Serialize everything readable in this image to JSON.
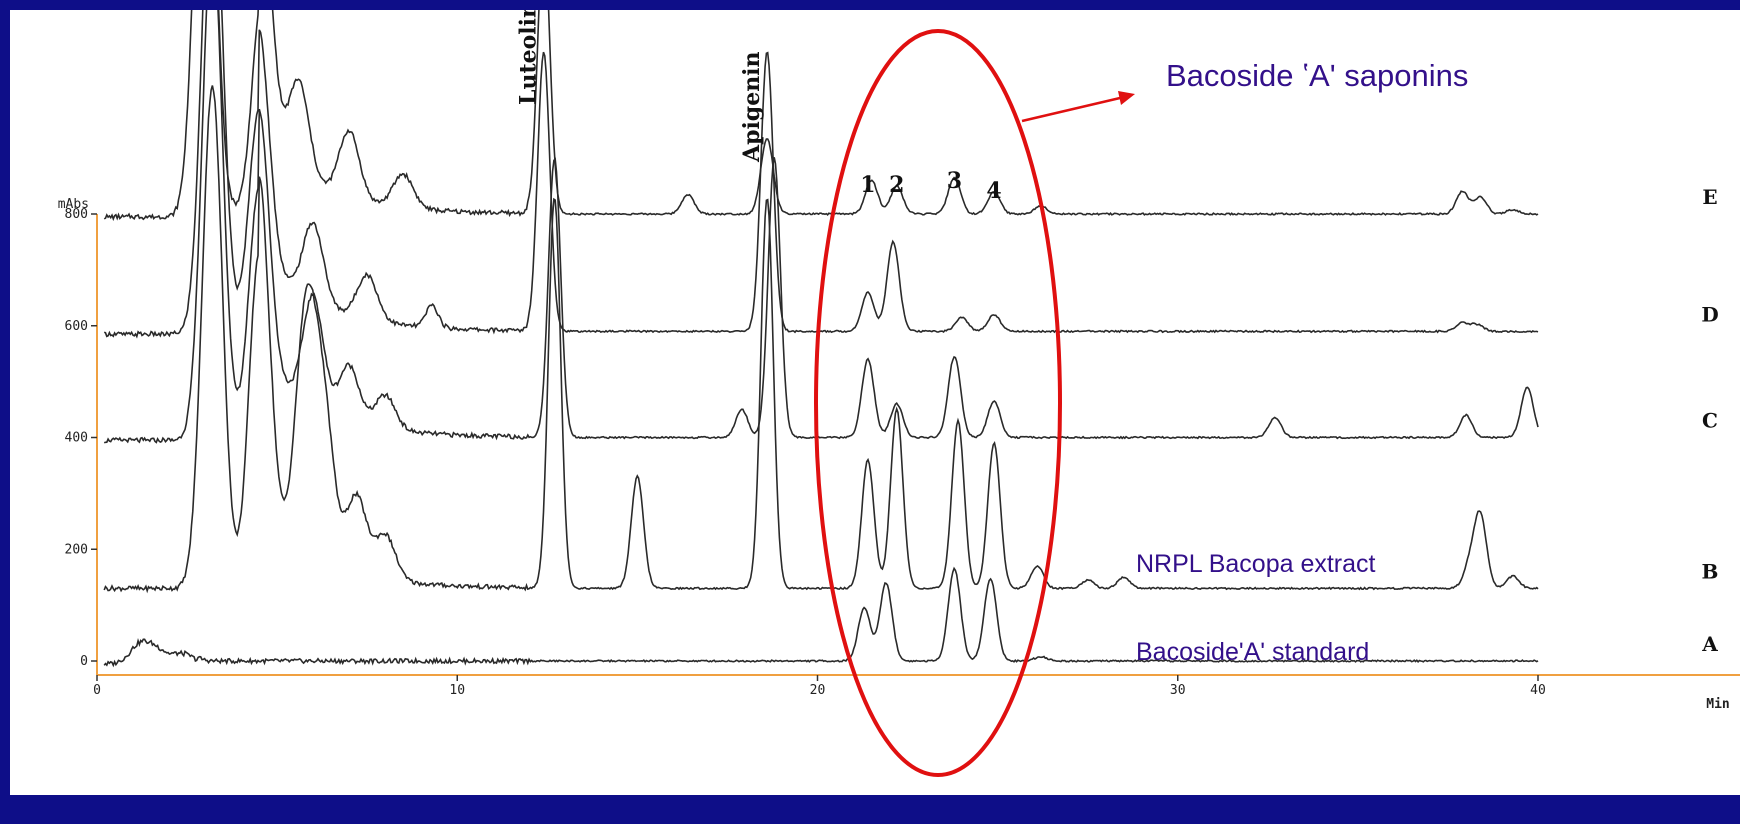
{
  "chart_data": {
    "type": "line",
    "title": "",
    "xlabel": "Min",
    "ylabel": "mAbs",
    "xlim": [
      0,
      40
    ],
    "ylim": [
      0,
      800
    ],
    "x_ticks": [
      0,
      10,
      20,
      30,
      40
    ],
    "y_ticks": [
      0,
      200,
      400,
      600,
      800
    ],
    "y_tick_labels": [
      "0",
      "200",
      "400",
      "600",
      "800"
    ],
    "x_tick_labels": [
      "0",
      "10",
      "20",
      "30",
      "40"
    ],
    "series": [
      {
        "name": "A",
        "baseline": 0,
        "peaks": [
          [
            1.2,
            35
          ],
          [
            1.7,
            22
          ],
          [
            2.4,
            18
          ],
          [
            21.3,
            95
          ],
          [
            21.9,
            140
          ],
          [
            23.8,
            165
          ],
          [
            24.8,
            148
          ],
          [
            26.2,
            8
          ]
        ]
      },
      {
        "name": "B",
        "baseline": 130,
        "peaks": [
          [
            3.2,
            900
          ],
          [
            4.5,
            600
          ],
          [
            5.8,
            420
          ],
          [
            6.3,
            260
          ],
          [
            7.2,
            140
          ],
          [
            8.0,
            80
          ],
          [
            12.7,
            700
          ],
          [
            15.0,
            200
          ],
          [
            18.6,
            700
          ],
          [
            21.4,
            230
          ],
          [
            22.2,
            320
          ],
          [
            23.9,
            300
          ],
          [
            24.9,
            260
          ],
          [
            26.1,
            40
          ],
          [
            27.5,
            15
          ],
          [
            28.5,
            20
          ],
          [
            38.1,
            40
          ],
          [
            38.4,
            130
          ],
          [
            39.3,
            22
          ]
        ]
      },
      {
        "name": "C",
        "baseline": 400,
        "peaks": [
          [
            3.2,
            900
          ],
          [
            4.5,
            450
          ],
          [
            6.0,
            200
          ],
          [
            7.0,
            100
          ],
          [
            8.0,
            60
          ],
          [
            12.7,
            500
          ],
          [
            17.9,
            50
          ],
          [
            18.8,
            500
          ],
          [
            21.4,
            140
          ],
          [
            22.2,
            60
          ],
          [
            23.8,
            145
          ],
          [
            24.9,
            65
          ],
          [
            32.7,
            35
          ],
          [
            38.0,
            40
          ],
          [
            39.7,
            90
          ]
        ]
      },
      {
        "name": "D",
        "baseline": 590,
        "peaks": [
          [
            3.2,
            900
          ],
          [
            4.5,
            400
          ],
          [
            6.0,
            140
          ],
          [
            7.5,
            80
          ],
          [
            9.3,
            40
          ],
          [
            12.4,
            500
          ],
          [
            18.6,
            500
          ],
          [
            21.4,
            70
          ],
          [
            22.1,
            160
          ],
          [
            24.0,
            25
          ],
          [
            24.9,
            30
          ],
          [
            37.9,
            15
          ],
          [
            38.3,
            12
          ]
        ]
      },
      {
        "name": "E",
        "baseline": 800,
        "peaks": [
          [
            3.0,
            900
          ],
          [
            4.6,
            400
          ],
          [
            5.6,
            170
          ],
          [
            7.0,
            120
          ],
          [
            8.5,
            60
          ],
          [
            12.4,
            500
          ],
          [
            16.4,
            35
          ],
          [
            18.6,
            135
          ],
          [
            21.5,
            60
          ],
          [
            22.2,
            50
          ],
          [
            23.8,
            65
          ],
          [
            24.9,
            40
          ],
          [
            26.2,
            15
          ],
          [
            37.9,
            40
          ],
          [
            38.4,
            30
          ],
          [
            39.3,
            8
          ]
        ]
      }
    ],
    "compound_labels": [
      {
        "text": "Luteolin",
        "x": 12.4
      },
      {
        "text": "Apigenin",
        "x": 18.6
      }
    ],
    "peak_numbers": [
      {
        "text": "1",
        "x": 21.4
      },
      {
        "text": "2",
        "x": 22.2
      },
      {
        "text": "3",
        "x": 23.8
      },
      {
        "text": "4",
        "x": 24.9
      }
    ]
  },
  "annotations": {
    "saponins": "Bacoside ʽAʹ saponins",
    "extract": "NRPL Bacopa extract",
    "standard": "BacosideʹAʹ standard"
  },
  "colors": {
    "background": "#0e0e88",
    "panel": "#ffffff",
    "axis": "#f0a040",
    "trace": "#2a2a2a",
    "ellipse": "#e01010",
    "annotation_text": "#33108a"
  }
}
